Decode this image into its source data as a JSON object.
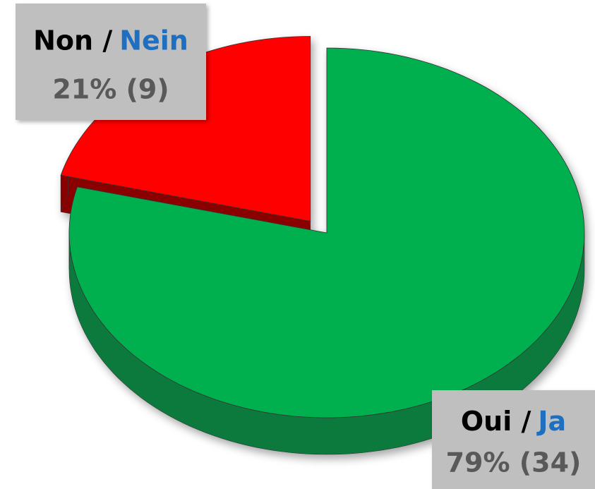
{
  "chart_data": {
    "type": "pie",
    "categories": [
      [
        "Oui /",
        "Ja"
      ],
      [
        "Non /",
        "Nein"
      ]
    ],
    "category_colors": [
      "#000000",
      "#1f6fc0"
    ],
    "values": [
      79,
      21
    ],
    "value_labels": [
      "79% (34)",
      "21% (9)"
    ],
    "colors": [
      "#00b050",
      "#ff0000"
    ],
    "side_colors": [
      "#0b7a3c",
      "#8a0000"
    ],
    "label_color": "#595959",
    "label_box_color": "#bfbfbf"
  }
}
